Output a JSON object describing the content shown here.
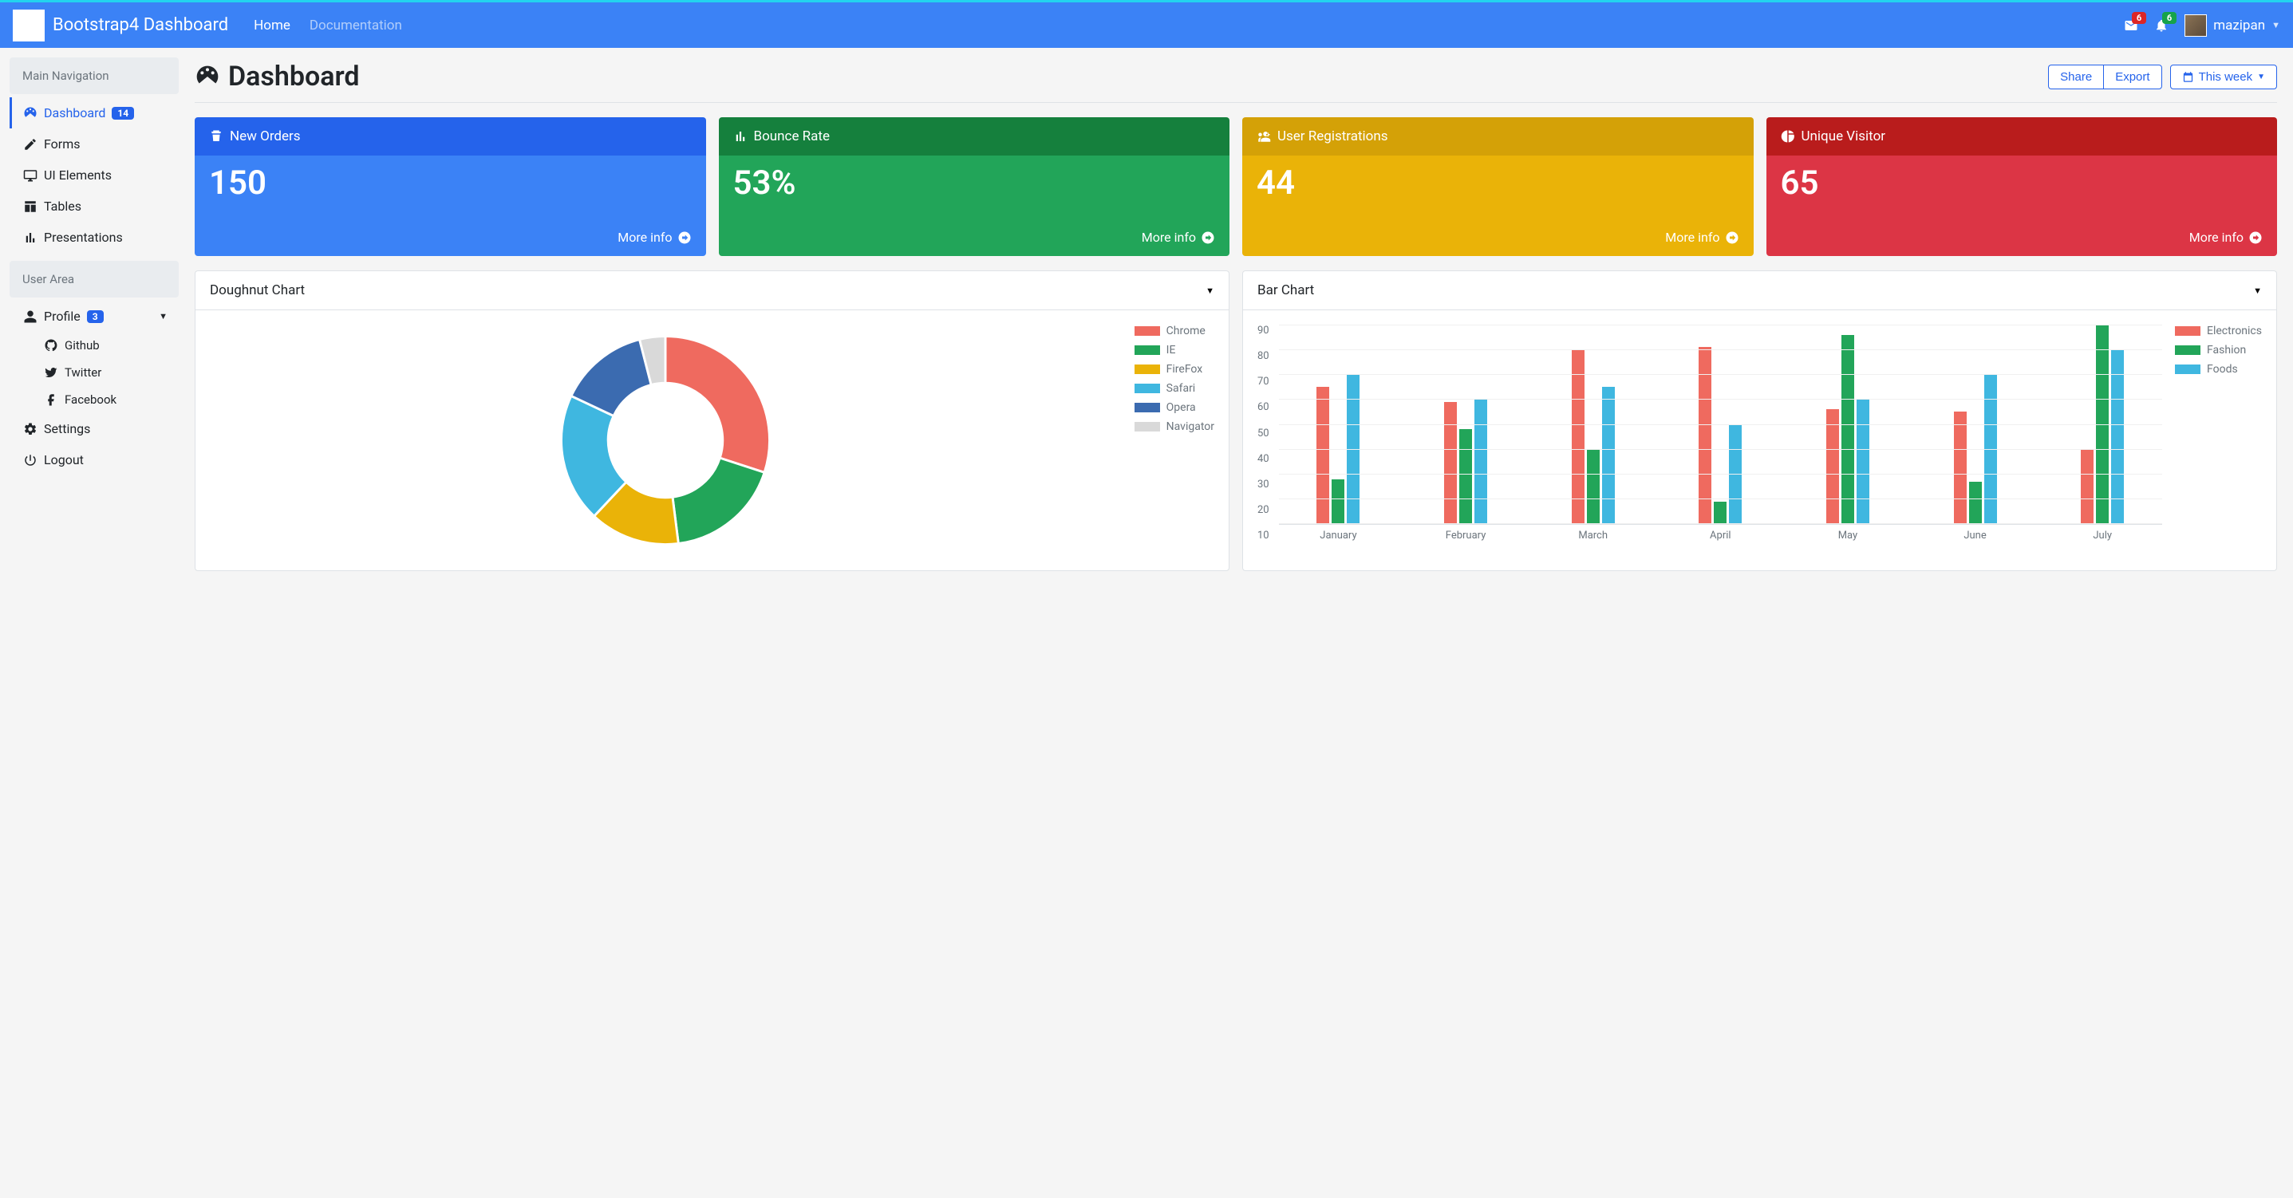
{
  "topbar": {
    "brand": "Bootstrap4 Dashboard",
    "nav": {
      "home": "Home",
      "docs": "Documentation"
    },
    "mail_badge": "6",
    "bell_badge": "6",
    "username": "mazipan"
  },
  "sidebar": {
    "section_main": "Main Navigation",
    "section_user": "User Area",
    "items": {
      "dashboard": {
        "label": "Dashboard",
        "badge": "14"
      },
      "forms": "Forms",
      "ui": "UI Elements",
      "tables": "Tables",
      "presentations": "Presentations",
      "profile": {
        "label": "Profile",
        "badge": "3"
      },
      "github": "Github",
      "twitter": "Twitter",
      "facebook": "Facebook",
      "settings": "Settings",
      "logout": "Logout"
    }
  },
  "header": {
    "title": "Dashboard",
    "share": "Share",
    "export": "Export",
    "period": "This week"
  },
  "stats": [
    {
      "title": "New Orders",
      "value": "150",
      "footer": "More info",
      "head_color": "#2563eb",
      "body_color": "#3b82f6"
    },
    {
      "title": "Bounce Rate",
      "value": "53%",
      "footer": "More info",
      "head_color": "#15803d",
      "body_color": "#22a559"
    },
    {
      "title": "User Registrations",
      "value": "44",
      "footer": "More info",
      "head_color": "#d4a107",
      "body_color": "#eab308"
    },
    {
      "title": "Unique Visitor",
      "value": "65",
      "footer": "More info",
      "head_color": "#b91c1c",
      "body_color": "#dc3545"
    }
  ],
  "doughnut": {
    "title": "Doughnut Chart",
    "type": "doughnut",
    "labels": [
      "Chrome",
      "IE",
      "FireFox",
      "Safari",
      "Opera",
      "Navigator"
    ],
    "values": [
      30,
      18,
      14,
      20,
      14,
      4
    ],
    "colors": [
      "#ef6a5f",
      "#22a559",
      "#eab308",
      "#3fb7e0",
      "#3b6bb0",
      "#d9d9d9"
    ],
    "background_color": "#ffffff",
    "inner_radius_pct": 55,
    "legend_fontsize": 14,
    "label_color": "#6c757d"
  },
  "bar": {
    "title": "Bar Chart",
    "type": "bar",
    "categories": [
      "January",
      "February",
      "March",
      "April",
      "May",
      "June",
      "July"
    ],
    "series": [
      {
        "name": "Electronics",
        "color": "#ef6a5f",
        "values": [
          65,
          59,
          80,
          81,
          56,
          55,
          40
        ]
      },
      {
        "name": "Fashion",
        "color": "#22a559",
        "values": [
          28,
          48,
          40,
          19,
          86,
          27,
          90
        ]
      },
      {
        "name": "Foods",
        "color": "#3fb7e0",
        "values": [
          70,
          60,
          65,
          50,
          60,
          70,
          80
        ]
      }
    ],
    "ylim": [
      10,
      90
    ],
    "ytick_step": 10,
    "yticks": [
      90,
      80,
      70,
      60,
      50,
      40,
      30,
      20,
      10
    ],
    "grid_color": "#f0f0f0",
    "axis_color": "#dee2e6",
    "legend_fontsize": 14,
    "label_color": "#6c757d",
    "background_color": "#ffffff"
  }
}
